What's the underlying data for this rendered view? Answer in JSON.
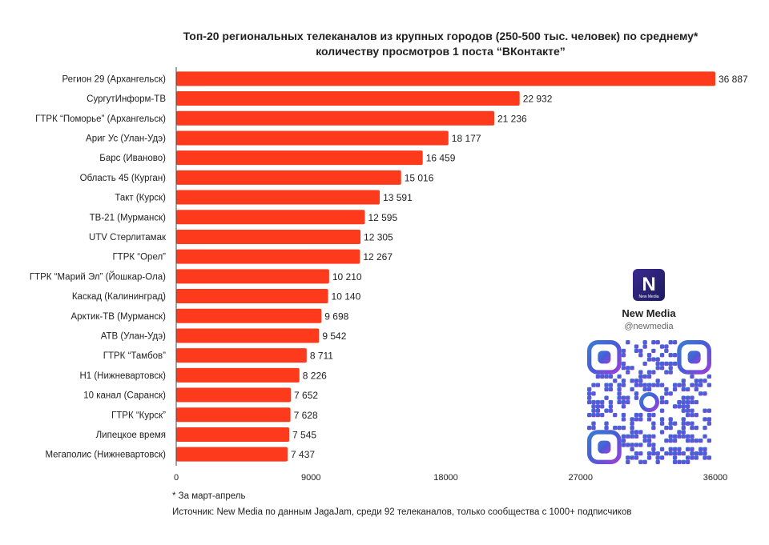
{
  "title_line1": "Топ-20 региональных телеканалов из крупных городов (250-500 тыс. человек) по среднему*",
  "title_line2": "количеству просмотров 1 поста “ВКонтакте”",
  "chart_data": {
    "type": "bar",
    "orientation": "horizontal",
    "title": "Топ-20 региональных телеканалов из крупных городов (250-500 тыс. человек) по среднему* количеству просмотров 1 поста “ВКонтакте”",
    "categories": [
      "Регион 29 (Архангельск)",
      "СургутИнформ-ТВ",
      "ГТРК “Поморье” (Архангельск)",
      "Ариг Ус (Улан-Удэ)",
      "Барс (Иваново)",
      "Область 45 (Курган)",
      "Такт (Курск)",
      "ТВ-21 (Мурманск)",
      "UTV Стерлитамак",
      "ГТРК “Орел”",
      "ГТРК “Марий Эл” (Йошкар-Ола)",
      "Каскад (Калининград)",
      "Арктик-ТВ (Мурманск)",
      "АТВ (Улан-Удэ)",
      "ГТРК “Тамбов”",
      "Н1 (Нижневартовск)",
      "10 канал (Саранск)",
      "ГТРК “Курск”",
      "Липецкое время",
      "Мегаполис (Нижневартовск)"
    ],
    "values": [
      36887,
      22932,
      21236,
      18177,
      16459,
      15016,
      13591,
      12595,
      12305,
      12267,
      10210,
      10140,
      9698,
      9542,
      8711,
      8226,
      7652,
      7628,
      7545,
      7437
    ],
    "value_labels": [
      "36 887",
      "22 932",
      "21 236",
      "18 177",
      "16 459",
      "15 016",
      "13 591",
      "12 595",
      "12 305",
      "12 267",
      "10 210",
      "10 140",
      "9 698",
      "9 542",
      "8 711",
      "8 226",
      "7 652",
      "7 628",
      "7 545",
      "7 437"
    ],
    "xlim": [
      0,
      36000
    ],
    "xticks": [
      0,
      9000,
      18000,
      27000,
      36000
    ],
    "xtick_labels": [
      "0",
      "9000",
      "18000",
      "27000",
      "36000"
    ],
    "bar_color": "#fd3a1c",
    "grid": false,
    "xlabel": "",
    "ylabel": ""
  },
  "footnote": "* За март-апрель",
  "source": "Источник: New Media по данным JagaJam, среди 92 телеканалов, только сообщества с 1000+ подписчиков",
  "brand": {
    "logo_letter": "N",
    "logo_sub": "New Media",
    "name": "New Media",
    "handle": "@newmedia"
  },
  "qr_icon": "qr-code-icon"
}
